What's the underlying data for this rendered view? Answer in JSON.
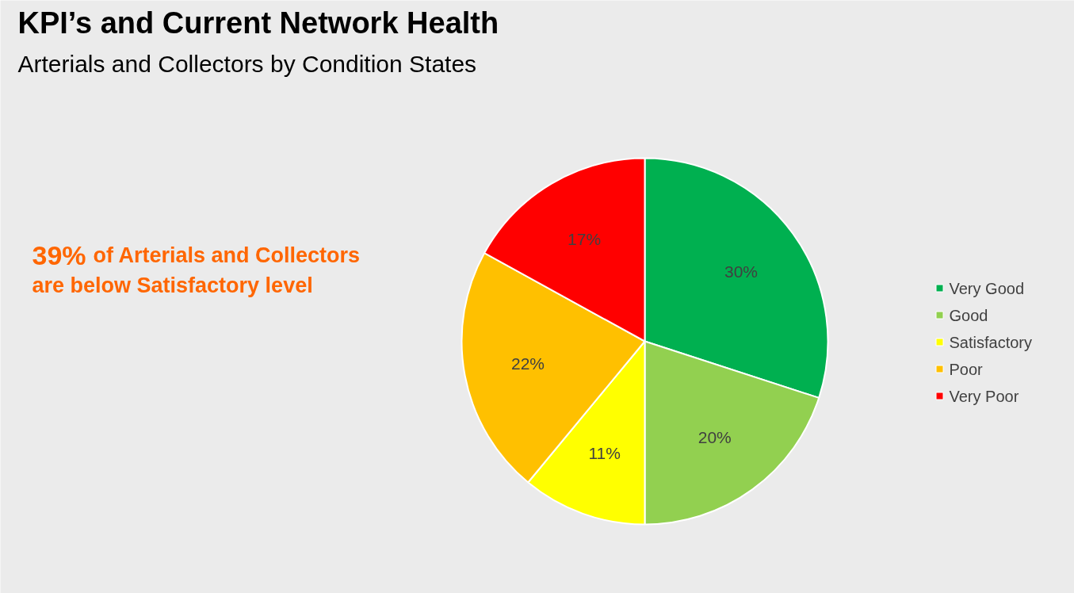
{
  "chart_data": {
    "type": "pie",
    "title": "KPI’s and Current Network Health",
    "subtitle": "Arterials and Collectors by Condition States",
    "categories": [
      "Very Good",
      "Good",
      "Satisfactory",
      "Poor",
      "Very Poor"
    ],
    "values": [
      30,
      20,
      11,
      22,
      17
    ],
    "colors": [
      "#00b050",
      "#92d050",
      "#ffff00",
      "#ffc000",
      "#ff0000"
    ],
    "value_labels": [
      "30%",
      "20%",
      "11%",
      "22%",
      "17%"
    ],
    "legend": "right",
    "annotations": [
      "39% of Arterials and Collectors are below Satisfactory level"
    ]
  }
}
